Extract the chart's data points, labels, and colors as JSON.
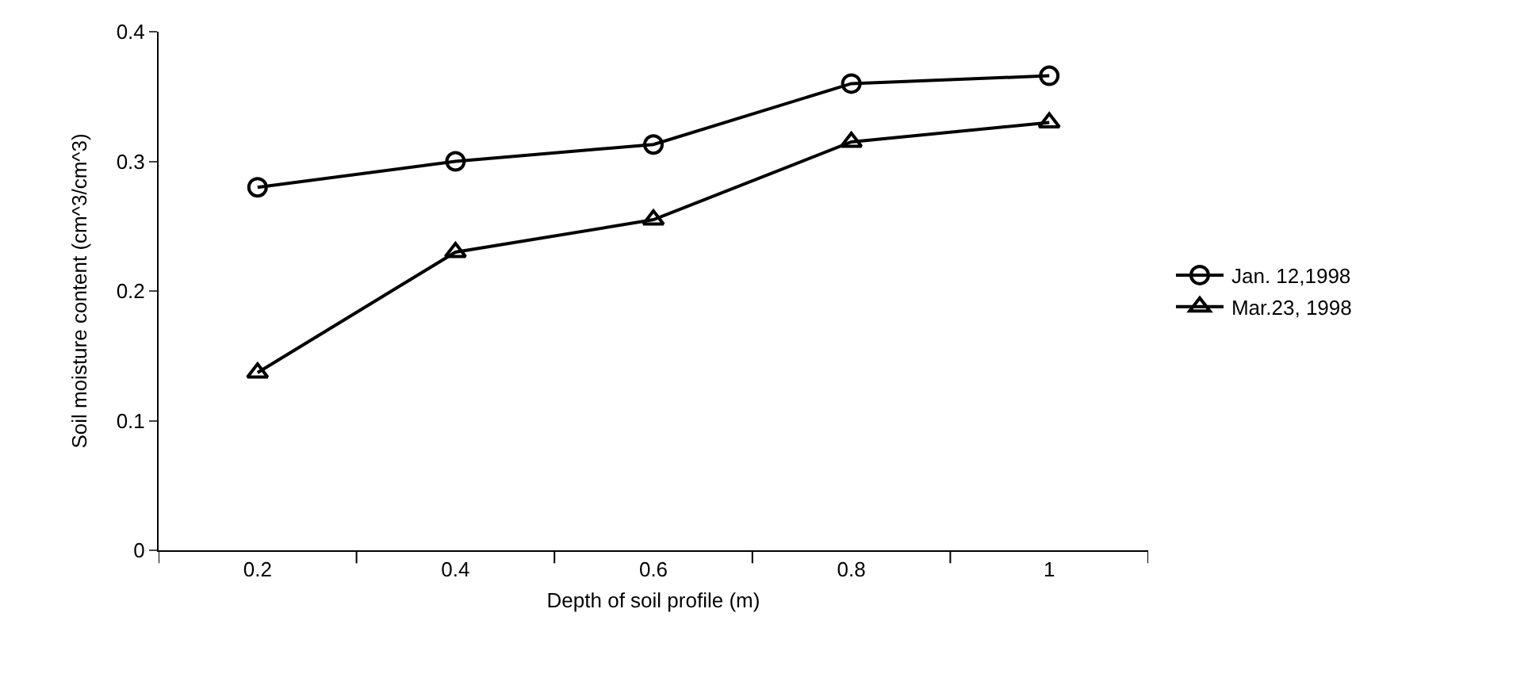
{
  "chart_data": {
    "type": "line",
    "xlabel": "Depth of soil profile (m)",
    "ylabel": "Soil moisture content (cm^3/cm^3)",
    "categories": [
      "0.2",
      "0.4",
      "0.6",
      "0.8",
      "1"
    ],
    "series": [
      {
        "name": "Jan. 12,1998",
        "color": "#000000",
        "marker": "circle",
        "values": [
          0.28,
          0.3,
          0.313,
          0.36,
          0.366
        ]
      },
      {
        "name": "Mar.23, 1998",
        "color": "#000000",
        "marker": "triangle",
        "values": [
          0.137,
          0.23,
          0.255,
          0.315,
          0.33
        ]
      }
    ],
    "ylim": [
      0,
      0.4
    ],
    "yticks": [
      0,
      0.1,
      0.2,
      0.3,
      0.4
    ],
    "legend": "right",
    "line_style": "solid"
  }
}
